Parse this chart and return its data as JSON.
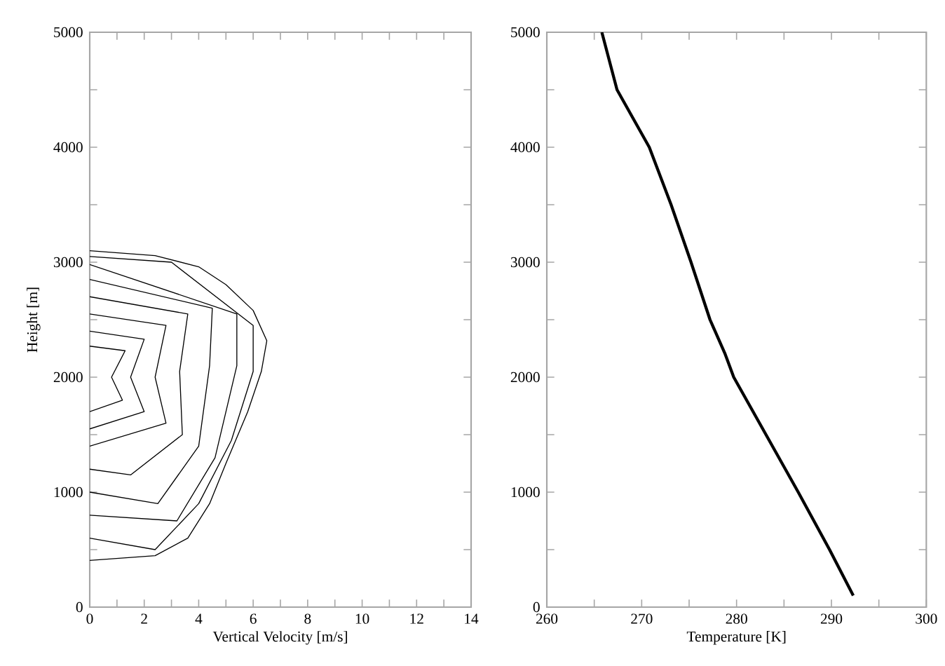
{
  "chart_data": [
    {
      "type": "line",
      "xlabel": "Vertical Velocity [m/s]",
      "ylabel": "Height [m]",
      "xlim": [
        0,
        14
      ],
      "xticks": [
        0,
        {
          "value": 1,
          "label": null
        },
        2,
        {
          "value": 3,
          "label": null
        },
        4,
        {
          "value": 5,
          "label": null
        },
        6,
        {
          "value": 7,
          "label": null
        },
        8,
        {
          "value": 9,
          "label": null
        },
        10,
        {
          "value": 11,
          "label": null
        },
        12,
        {
          "value": 13,
          "label": null
        },
        14
      ],
      "ylim": [
        0,
        5000
      ],
      "yticks": [
        0,
        {
          "value": 500,
          "label": null
        },
        1000,
        {
          "value": 1500,
          "label": null
        },
        2000,
        {
          "value": 2500,
          "label": null
        },
        3000,
        {
          "value": 3500,
          "label": null
        },
        4000,
        {
          "value": 4500,
          "label": null
        },
        5000
      ],
      "series": [
        {
          "color": "#000000",
          "x": [
            0,
            1.3,
            0.8,
            1.2,
            0
          ],
          "values": [
            2270,
            2230,
            2000,
            1800,
            1700
          ]
        },
        {
          "color": "#000000",
          "x": [
            0,
            2.0,
            1.5,
            2.0,
            0
          ],
          "values": [
            2400,
            2330,
            2000,
            1700,
            1550
          ]
        },
        {
          "color": "#000000",
          "x": [
            0,
            2.8,
            2.4,
            2.8,
            0
          ],
          "values": [
            2550,
            2450,
            2000,
            1600,
            1400
          ]
        },
        {
          "color": "#000000",
          "x": [
            0,
            3.6,
            3.3,
            3.4,
            1.5,
            0
          ],
          "values": [
            2700,
            2550,
            2050,
            1500,
            1150,
            1200
          ]
        },
        {
          "color": "#000000",
          "x": [
            0,
            4.5,
            4.4,
            4.0,
            2.5,
            0
          ],
          "values": [
            2850,
            2600,
            2100,
            1400,
            900,
            1000
          ]
        },
        {
          "color": "#000000",
          "x": [
            0,
            5.4,
            5.4,
            4.6,
            3.2,
            0
          ],
          "values": [
            2980,
            2550,
            2100,
            1300,
            750,
            800
          ]
        },
        {
          "color": "#000000",
          "x": [
            0,
            3.0,
            6.0,
            6.0,
            5.2,
            4.0,
            2.4,
            0
          ],
          "values": [
            3050,
            3000,
            2450,
            2050,
            1450,
            900,
            500,
            600
          ]
        },
        {
          "color": "#000000",
          "x": [
            0,
            2.4,
            4.0,
            5.0,
            6.0,
            6.5,
            6.3,
            5.8,
            5.0,
            4.4,
            3.6,
            2.4,
            0
          ],
          "values": [
            3100,
            3057,
            2960,
            2805,
            2580,
            2317,
            2050,
            1700,
            1250,
            900,
            600,
            447,
            406
          ]
        }
      ]
    },
    {
      "type": "line",
      "xlabel": "Temperature [K]",
      "xlim": [
        260,
        300
      ],
      "xticks": [
        260,
        {
          "value": 265,
          "label": null
        },
        270,
        {
          "value": 275,
          "label": null
        },
        280,
        {
          "value": 285,
          "label": null
        },
        290,
        {
          "value": 295,
          "label": null
        },
        300
      ],
      "ylim": [
        0,
        5000
      ],
      "yticks": [
        0,
        {
          "value": 500,
          "label": null
        },
        1000,
        {
          "value": 1500,
          "label": null
        },
        2000,
        {
          "value": 2500,
          "label": null
        },
        3000,
        {
          "value": 3500,
          "label": null
        },
        4000,
        {
          "value": 4500,
          "label": null
        },
        5000
      ],
      "series": [
        {
          "color": "#000000",
          "x": [
            265.8,
            267.4,
            270.8,
            273.1,
            275.2,
            277.2,
            278.8,
            279.7,
            283.1,
            286.5,
            289.8,
            292.3
          ],
          "values": [
            5000,
            4500,
            4000,
            3500,
            3000,
            2500,
            2200,
            2000,
            1500,
            1000,
            500,
            100
          ]
        }
      ]
    }
  ]
}
